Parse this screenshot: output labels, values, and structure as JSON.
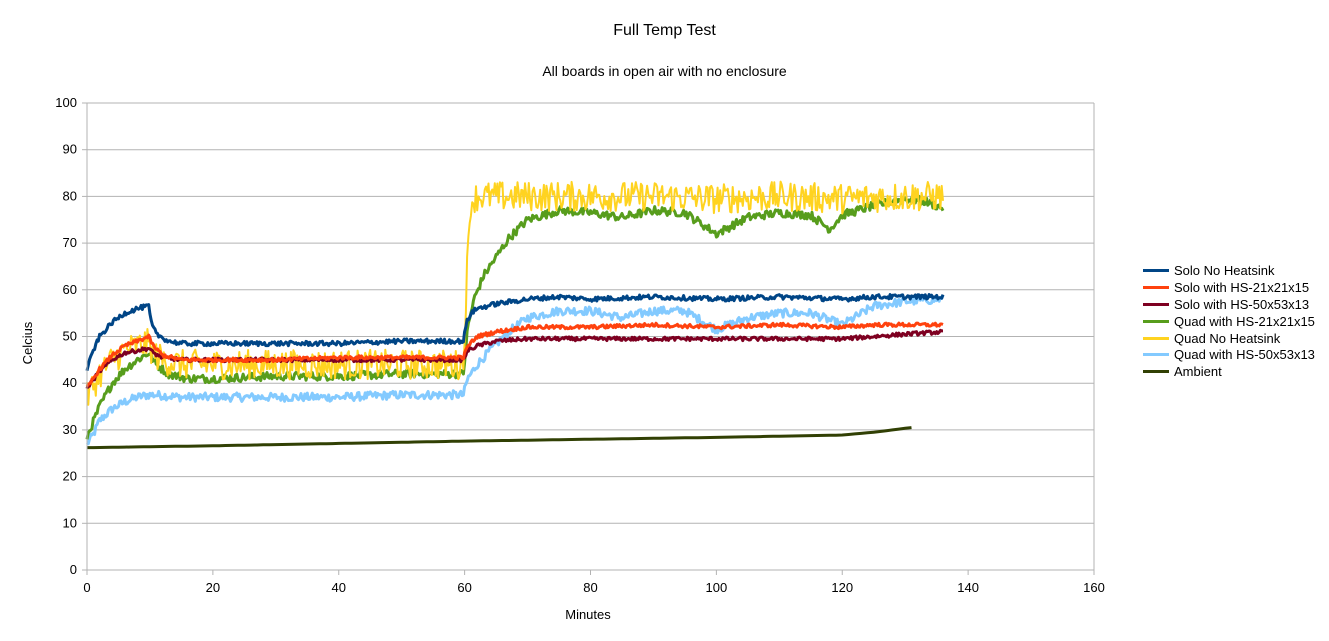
{
  "chart_data": {
    "type": "line",
    "title": "Full Temp Test",
    "subtitle": "All boards in open air with no enclosure",
    "xlabel": "Minutes",
    "ylabel": "Celcius",
    "xlim": [
      0,
      160
    ],
    "ylim": [
      0,
      100
    ],
    "x_ticks": [
      "0",
      "20",
      "40",
      "60",
      "80",
      "100",
      "120",
      "140",
      "160"
    ],
    "y_ticks": [
      "0",
      "10",
      "20",
      "30",
      "40",
      "50",
      "60",
      "70",
      "80",
      "90",
      "100"
    ],
    "grid": "horizontal",
    "legend_position": "right",
    "series": [
      {
        "name": "Solo No Heatsink",
        "color": "#004586",
        "noise": 0.5,
        "points": [
          [
            0,
            43
          ],
          [
            1,
            47
          ],
          [
            2,
            50
          ],
          [
            4,
            53
          ],
          [
            6,
            55
          ],
          [
            8,
            56
          ],
          [
            9.8,
            56.5
          ],
          [
            10.2,
            53
          ],
          [
            11,
            50.5
          ],
          [
            13,
            49
          ],
          [
            15,
            48.5
          ],
          [
            20,
            48.5
          ],
          [
            30,
            48.5
          ],
          [
            40,
            48.5
          ],
          [
            50,
            49
          ],
          [
            59.8,
            49
          ],
          [
            60.3,
            53
          ],
          [
            61,
            55
          ],
          [
            62,
            56
          ],
          [
            65,
            57
          ],
          [
            70,
            58
          ],
          [
            75,
            58.5
          ],
          [
            80,
            58
          ],
          [
            90,
            58.5
          ],
          [
            100,
            58
          ],
          [
            110,
            58.5
          ],
          [
            120,
            58
          ],
          [
            125,
            58.5
          ],
          [
            130,
            58.5
          ],
          [
            136,
            58.5
          ]
        ]
      },
      {
        "name": "Solo with HS-21x21x15",
        "color": "#ff420e",
        "noise": 0.4,
        "points": [
          [
            0,
            39
          ],
          [
            2,
            43
          ],
          [
            4,
            46
          ],
          [
            6,
            48
          ],
          [
            8,
            49
          ],
          [
            9.8,
            50
          ],
          [
            10.5,
            48
          ],
          [
            12,
            46
          ],
          [
            15,
            45
          ],
          [
            20,
            45
          ],
          [
            30,
            45
          ],
          [
            40,
            45.5
          ],
          [
            50,
            45.5
          ],
          [
            59.8,
            45.5
          ],
          [
            60.5,
            48
          ],
          [
            62,
            50
          ],
          [
            65,
            51
          ],
          [
            70,
            52
          ],
          [
            80,
            52
          ],
          [
            90,
            52.5
          ],
          [
            100,
            52
          ],
          [
            110,
            52.5
          ],
          [
            120,
            52
          ],
          [
            125,
            52.5
          ],
          [
            130,
            52.5
          ],
          [
            136,
            52.5
          ]
        ]
      },
      {
        "name": "Solo with HS-50x53x13",
        "color": "#7e0021",
        "noise": 0.4,
        "points": [
          [
            0,
            39
          ],
          [
            2,
            42.5
          ],
          [
            4,
            45
          ],
          [
            6,
            46.5
          ],
          [
            8,
            47
          ],
          [
            9.8,
            47.5
          ],
          [
            10.5,
            46.5
          ],
          [
            12,
            45.5
          ],
          [
            15,
            45
          ],
          [
            20,
            45
          ],
          [
            30,
            45
          ],
          [
            40,
            45
          ],
          [
            50,
            45
          ],
          [
            59.8,
            45
          ],
          [
            60.5,
            47
          ],
          [
            62,
            48
          ],
          [
            65,
            49
          ],
          [
            70,
            49.5
          ],
          [
            80,
            49.5
          ],
          [
            90,
            49.5
          ],
          [
            100,
            49.5
          ],
          [
            110,
            49.5
          ],
          [
            120,
            49.5
          ],
          [
            125,
            50
          ],
          [
            130,
            50.5
          ],
          [
            136,
            51
          ]
        ]
      },
      {
        "name": "Quad with HS-21x21x15",
        "color": "#579d1c",
        "noise": 0.9,
        "points": [
          [
            0,
            28.5
          ],
          [
            2,
            35
          ],
          [
            4,
            40
          ],
          [
            6,
            43
          ],
          [
            8,
            45
          ],
          [
            9.8,
            46.5
          ],
          [
            11,
            44
          ],
          [
            13,
            42
          ],
          [
            16,
            41
          ],
          [
            20,
            41
          ],
          [
            30,
            41.5
          ],
          [
            40,
            41.5
          ],
          [
            50,
            42
          ],
          [
            59.8,
            42
          ],
          [
            60.5,
            52
          ],
          [
            61.5,
            58
          ],
          [
            63,
            63
          ],
          [
            65,
            67
          ],
          [
            67,
            71
          ],
          [
            70,
            75
          ],
          [
            75,
            77
          ],
          [
            80,
            76.5
          ],
          [
            85,
            75.5
          ],
          [
            90,
            77
          ],
          [
            95,
            76.5
          ],
          [
            100,
            72
          ],
          [
            105,
            75.5
          ],
          [
            110,
            76.5
          ],
          [
            115,
            76
          ],
          [
            118,
            73
          ],
          [
            120,
            76
          ],
          [
            125,
            78
          ],
          [
            130,
            79.5
          ],
          [
            133,
            79
          ],
          [
            136,
            77.5
          ]
        ]
      },
      {
        "name": "Quad No Heatsink",
        "color": "#ffd320",
        "noise": 3.2,
        "points": [
          [
            0,
            37
          ],
          [
            2,
            42
          ],
          [
            4,
            45
          ],
          [
            6,
            47
          ],
          [
            8,
            48
          ],
          [
            9.8,
            48.5
          ],
          [
            10.5,
            46.5
          ],
          [
            12,
            45
          ],
          [
            15,
            44
          ],
          [
            20,
            44
          ],
          [
            30,
            44
          ],
          [
            40,
            44
          ],
          [
            50,
            44
          ],
          [
            59.8,
            44
          ],
          [
            60.3,
            62
          ],
          [
            61,
            79
          ],
          [
            62,
            80
          ],
          [
            70,
            80
          ],
          [
            80,
            80
          ],
          [
            90,
            80
          ],
          [
            100,
            79.5
          ],
          [
            110,
            80
          ],
          [
            120,
            79.5
          ],
          [
            130,
            80
          ],
          [
            136,
            80
          ]
        ]
      },
      {
        "name": "Quad with HS-50x53x13",
        "color": "#83caff",
        "noise": 0.9,
        "points": [
          [
            0,
            27
          ],
          [
            1,
            29
          ],
          [
            2,
            32
          ],
          [
            4,
            34.5
          ],
          [
            6,
            36
          ],
          [
            8,
            37
          ],
          [
            9.8,
            37.5
          ],
          [
            11,
            37.5
          ],
          [
            15,
            37
          ],
          [
            20,
            37
          ],
          [
            30,
            37
          ],
          [
            40,
            37
          ],
          [
            50,
            37.5
          ],
          [
            59.8,
            37.5
          ],
          [
            60.5,
            41
          ],
          [
            62,
            44
          ],
          [
            64,
            47
          ],
          [
            67,
            51
          ],
          [
            70,
            54
          ],
          [
            75,
            55.5
          ],
          [
            80,
            55.5
          ],
          [
            85,
            54
          ],
          [
            90,
            55.5
          ],
          [
            95,
            55.5
          ],
          [
            100,
            51.5
          ],
          [
            105,
            54
          ],
          [
            110,
            55
          ],
          [
            115,
            55
          ],
          [
            120,
            52.5
          ],
          [
            125,
            56.5
          ],
          [
            130,
            57.5
          ],
          [
            136,
            58
          ]
        ]
      },
      {
        "name": "Ambient",
        "color": "#314004",
        "noise": 0,
        "points": [
          [
            0,
            26.2
          ],
          [
            20,
            26.6
          ],
          [
            40,
            27.1
          ],
          [
            60,
            27.6
          ],
          [
            80,
            28
          ],
          [
            100,
            28.4
          ],
          [
            120,
            28.9
          ],
          [
            125,
            29.5
          ],
          [
            131,
            30.5
          ]
        ]
      }
    ]
  }
}
